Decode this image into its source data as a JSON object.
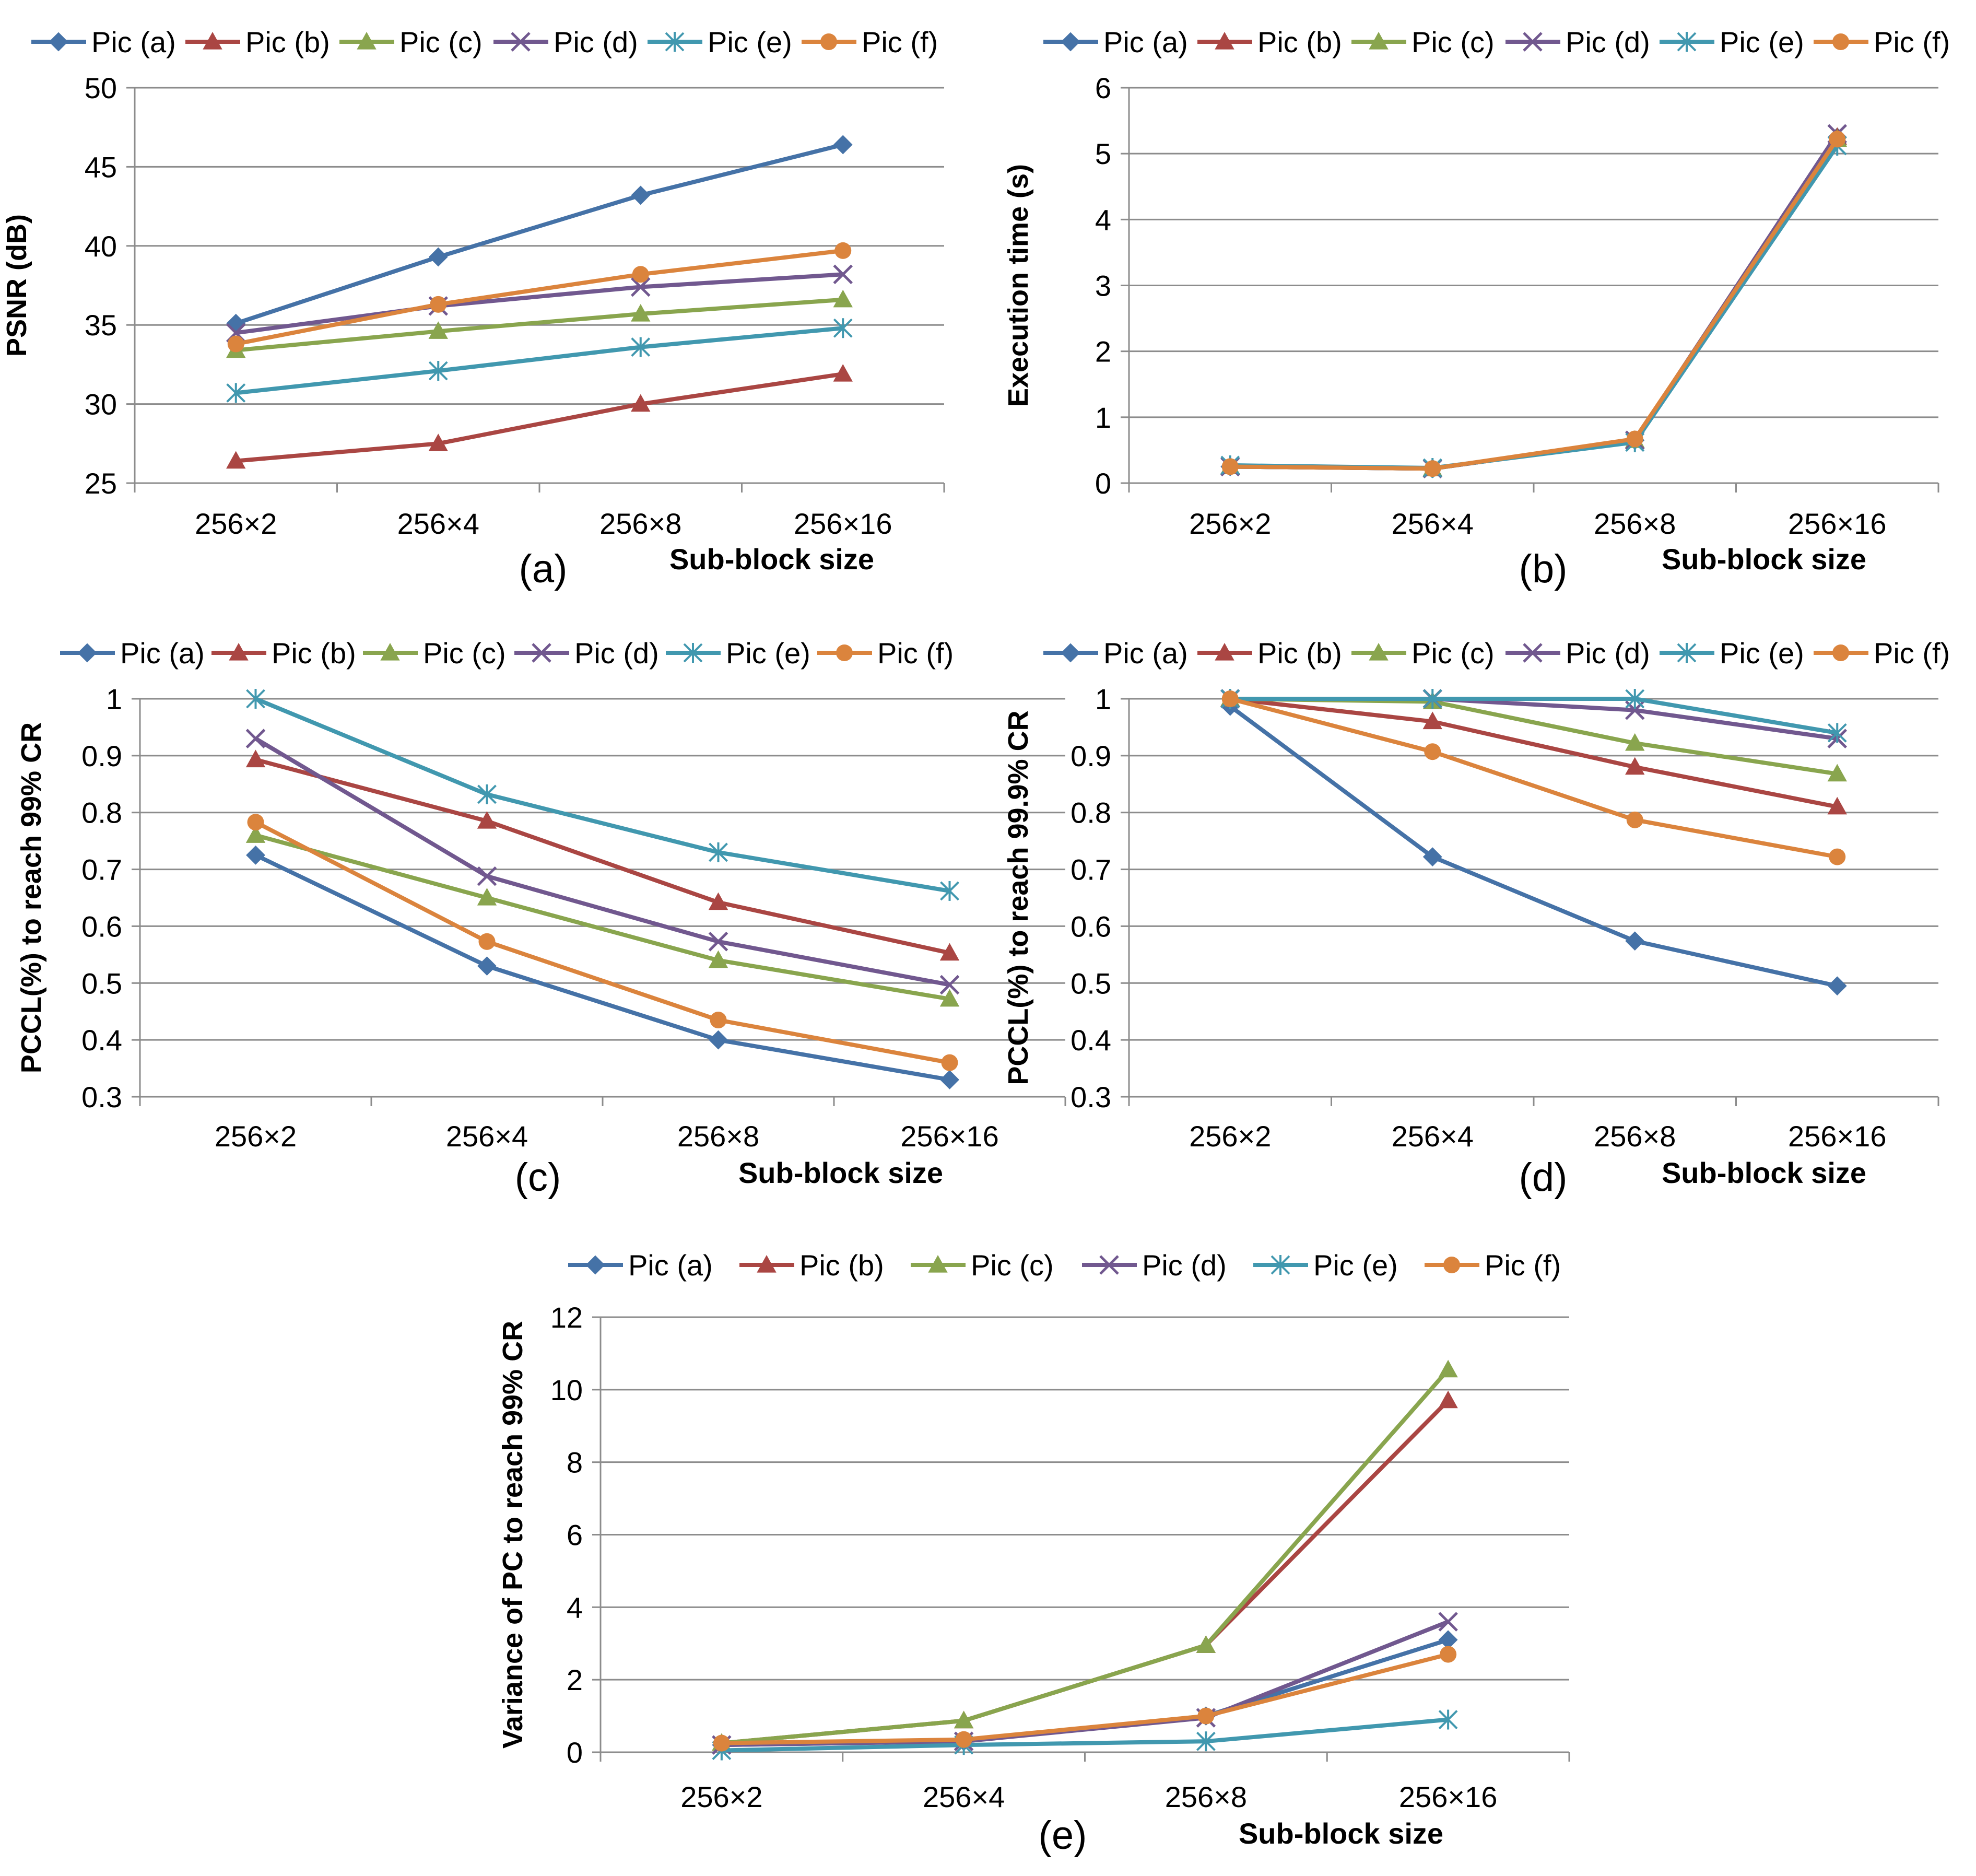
{
  "series_names": [
    "Pic (a)",
    "Pic (b)",
    "Pic (c)",
    "Pic (d)",
    "Pic (e)",
    "Pic (f)"
  ],
  "series_colors": [
    "#4572A7",
    "#AA4643",
    "#89A54E",
    "#71588F",
    "#4198AF",
    "#DB843D"
  ],
  "series_markers": [
    "diamond-icon",
    "triangle-icon",
    "triangle-icon",
    "x-cross-icon",
    "asterisk-icon",
    "circle-icon"
  ],
  "chart_data": [
    {
      "type": "line",
      "panel_label": "(a)",
      "title": "",
      "categories": [
        "256×2",
        "256×4",
        "256×8",
        "256×16"
      ],
      "xlabel": "Sub-block size",
      "ylabel": "PSNR (dB)",
      "ylim": [
        25,
        50
      ],
      "ytick_step": 5,
      "yticks": [
        "25",
        "30",
        "35",
        "40",
        "45",
        "50"
      ],
      "grid": true,
      "legend": "top",
      "series": [
        {
          "name": "Pic (a)",
          "values": [
            35.1,
            39.3,
            43.2,
            46.4
          ]
        },
        {
          "name": "Pic (b)",
          "values": [
            26.4,
            27.5,
            30.0,
            31.9
          ]
        },
        {
          "name": "Pic (c)",
          "values": [
            33.4,
            34.6,
            35.7,
            36.6
          ]
        },
        {
          "name": "Pic (d)",
          "values": [
            34.5,
            36.2,
            37.4,
            38.2
          ]
        },
        {
          "name": "Pic (e)",
          "values": [
            30.7,
            32.1,
            33.6,
            34.8
          ]
        },
        {
          "name": "Pic (f)",
          "values": [
            33.8,
            36.3,
            38.2,
            39.7
          ]
        }
      ]
    },
    {
      "type": "line",
      "panel_label": "(b)",
      "title": "",
      "categories": [
        "256×2",
        "256×4",
        "256×8",
        "256×16"
      ],
      "xlabel": "Sub-block size",
      "ylabel": "Execution time (s)",
      "ylim": [
        0,
        6
      ],
      "ytick_step": 1,
      "yticks": [
        "0",
        "1",
        "2",
        "3",
        "4",
        "5",
        "6"
      ],
      "grid": true,
      "legend": "top",
      "series": [
        {
          "name": "Pic (a)",
          "values": [
            0.25,
            0.22,
            0.65,
            5.25
          ]
        },
        {
          "name": "Pic (b)",
          "values": [
            0.25,
            0.22,
            0.65,
            5.25
          ]
        },
        {
          "name": "Pic (c)",
          "values": [
            0.25,
            0.22,
            0.65,
            5.22
          ]
        },
        {
          "name": "Pic (d)",
          "values": [
            0.25,
            0.22,
            0.65,
            5.3
          ]
        },
        {
          "name": "Pic (e)",
          "values": [
            0.27,
            0.23,
            0.62,
            5.12
          ]
        },
        {
          "name": "Pic (f)",
          "values": [
            0.25,
            0.22,
            0.67,
            5.22
          ]
        }
      ]
    },
    {
      "type": "line",
      "panel_label": "(c)",
      "title": "",
      "categories": [
        "256×2",
        "256×4",
        "256×8",
        "256×16"
      ],
      "xlabel": "Sub-block size",
      "ylabel": "PCCL(%) to reach 99% CR",
      "ylim": [
        0.3,
        1
      ],
      "ytick_step": 0.1,
      "yticks": [
        "0.3",
        "0.4",
        "0.5",
        "0.6",
        "0.7",
        "0.8",
        "0.9",
        "1"
      ],
      "grid": true,
      "legend": "top",
      "series": [
        {
          "name": "Pic (a)",
          "values": [
            0.725,
            0.53,
            0.4,
            0.33
          ]
        },
        {
          "name": "Pic (b)",
          "values": [
            0.893,
            0.785,
            0.642,
            0.553
          ]
        },
        {
          "name": "Pic (c)",
          "values": [
            0.76,
            0.65,
            0.54,
            0.472
          ]
        },
        {
          "name": "Pic (d)",
          "values": [
            0.93,
            0.688,
            0.573,
            0.497
          ]
        },
        {
          "name": "Pic (e)",
          "values": [
            1.0,
            0.832,
            0.73,
            0.662
          ]
        },
        {
          "name": "Pic (f)",
          "values": [
            0.783,
            0.573,
            0.435,
            0.36
          ]
        }
      ]
    },
    {
      "type": "line",
      "panel_label": "(d)",
      "title": "",
      "categories": [
        "256×2",
        "256×4",
        "256×8",
        "256×16"
      ],
      "xlabel": "Sub-block size",
      "ylabel": "PCCL(%) to reach 99.9% CR",
      "ylim": [
        0.3,
        1
      ],
      "ytick_step": 0.1,
      "yticks": [
        "0.3",
        "0.4",
        "0.5",
        "0.6",
        "0.7",
        "0.8",
        "0.9",
        "1"
      ],
      "grid": true,
      "legend": "top",
      "series": [
        {
          "name": "Pic (a)",
          "values": [
            0.987,
            0.722,
            0.574,
            0.495
          ]
        },
        {
          "name": "Pic (b)",
          "values": [
            1.0,
            0.96,
            0.88,
            0.81
          ]
        },
        {
          "name": "Pic (c)",
          "values": [
            1.0,
            0.995,
            0.922,
            0.868
          ]
        },
        {
          "name": "Pic (d)",
          "values": [
            1.0,
            1.0,
            0.98,
            0.93
          ]
        },
        {
          "name": "Pic (e)",
          "values": [
            1.0,
            1.0,
            1.0,
            0.94
          ]
        },
        {
          "name": "Pic (f)",
          "values": [
            1.0,
            0.907,
            0.787,
            0.722
          ]
        }
      ]
    },
    {
      "type": "line",
      "panel_label": "(e)",
      "title": "",
      "categories": [
        "256×2",
        "256×4",
        "256×8",
        "256×16"
      ],
      "xlabel": "Sub-block size",
      "ylabel": "Variance of PC to reach 99% CR",
      "ylim": [
        0,
        12
      ],
      "ytick_step": 2,
      "yticks": [
        "0",
        "2",
        "4",
        "6",
        "8",
        "10",
        "12"
      ],
      "grid": true,
      "legend": "top",
      "series": [
        {
          "name": "Pic (a)",
          "values": [
            0.2,
            0.3,
            1.0,
            3.1
          ]
        },
        {
          "name": "Pic (b)",
          "values": [
            0.25,
            0.87,
            2.95,
            9.7
          ]
        },
        {
          "name": "Pic (c)",
          "values": [
            0.25,
            0.87,
            2.95,
            10.55
          ]
        },
        {
          "name": "Pic (d)",
          "values": [
            0.2,
            0.3,
            0.95,
            3.6
          ]
        },
        {
          "name": "Pic (e)",
          "values": [
            0.05,
            0.2,
            0.3,
            0.9
          ]
        },
        {
          "name": "Pic (f)",
          "values": [
            0.25,
            0.35,
            1.0,
            2.7
          ]
        }
      ]
    }
  ]
}
